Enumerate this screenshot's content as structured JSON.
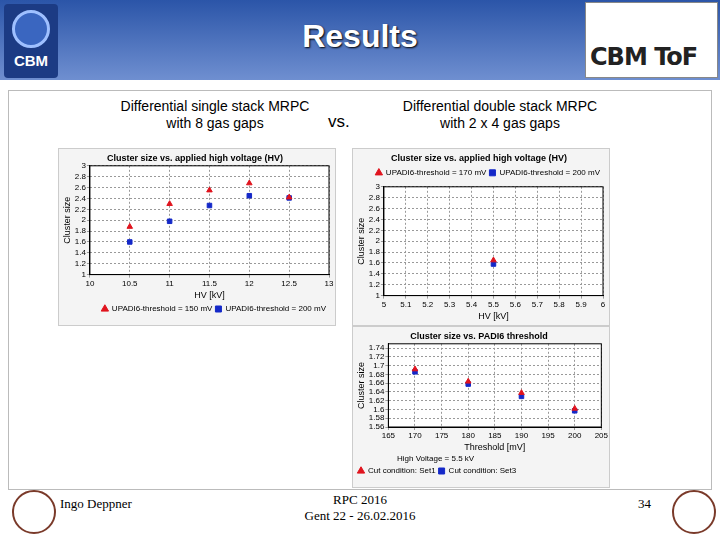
{
  "slide": {
    "title": "Results",
    "logo_left": "CBM",
    "logo_right": "CBM ToF",
    "left_heading": [
      "Differential single stack MRPC",
      "with 8 gas gaps"
    ],
    "vs": "vs.",
    "right_heading": [
      "Differential double stack MRPC",
      "with 2 x 4 gas gaps"
    ],
    "author": "Ingo Deppner",
    "conference": [
      "RPC 2016",
      "Gent 22 - 26.02.2016"
    ],
    "page": "34"
  },
  "chart_data": [
    {
      "type": "scatter",
      "title": "Cluster size vs. applied high voltage (HV)",
      "x_label": "HV [kV]",
      "y_label": "Cluster size",
      "x": [
        10.5,
        11,
        11.5,
        12,
        12.5
      ],
      "series": [
        {
          "name": "UPADI6-threshold = 150 mV",
          "color": "#e0141e",
          "marker": "triangle",
          "values": [
            1.88,
            2.3,
            2.55,
            2.68,
            2.42
          ]
        },
        {
          "name": "UPADI6-threshold = 200 mV",
          "color": "#1428c8",
          "marker": "square",
          "values": [
            1.6,
            1.98,
            2.27,
            2.45,
            2.41
          ]
        }
      ],
      "xlim": [
        10,
        13
      ],
      "xticks": [
        10,
        10.5,
        11,
        11.5,
        12,
        12.5,
        13
      ],
      "ylim": [
        1,
        3
      ],
      "yticks": [
        1,
        1.2,
        1.4,
        1.6,
        1.8,
        2,
        2.2,
        2.4,
        2.6,
        2.8,
        3
      ],
      "grid": true,
      "legend": "bottom right"
    },
    {
      "type": "scatter",
      "title": "Cluster size vs. applied high voltage (HV)",
      "x_label": "HV [kV]",
      "y_label": "Cluster size",
      "x": [
        5.5
      ],
      "series": [
        {
          "name": "UPADI6-threshold = 170 mV",
          "color": "#e0141e",
          "marker": "triangle",
          "values": [
            1.65
          ]
        },
        {
          "name": "UPADI6-threshold = 200 mV",
          "color": "#1428c8",
          "marker": "square",
          "values": [
            1.58
          ]
        }
      ],
      "xlim": [
        5,
        6
      ],
      "xticks": [
        5,
        5.1,
        5.2,
        5.3,
        5.4,
        5.5,
        5.6,
        5.7,
        5.8,
        5.9,
        6
      ],
      "ylim": [
        1,
        3
      ],
      "yticks": [
        1,
        1.2,
        1.4,
        1.6,
        1.8,
        2,
        2.2,
        2.4,
        2.6,
        2.8,
        3
      ],
      "grid": true,
      "legend": "top right"
    },
    {
      "type": "scatter",
      "title": "Cluster size vs. PADI6 threshold",
      "x_label": "Threshold [mV]",
      "y_label": "Cluster size",
      "annotation": "High Voltage = 5.5 kV",
      "x": [
        170,
        180,
        190,
        200
      ],
      "series": [
        {
          "name": "Cut condition: Set1",
          "color": "#e0141e",
          "marker": "triangle",
          "values": [
            1.692,
            1.664,
            1.638,
            1.602
          ]
        },
        {
          "name": "Cut condition: Set3",
          "color": "#1428c8",
          "marker": "square",
          "values": [
            1.686,
            1.658,
            1.63,
            1.597
          ]
        }
      ],
      "xlim": [
        165,
        205
      ],
      "xticks": [
        165,
        170,
        175,
        180,
        185,
        190,
        195,
        200,
        205
      ],
      "ylim": [
        1.56,
        1.75
      ],
      "yticks": [
        1.56,
        1.58,
        1.6,
        1.62,
        1.64,
        1.66,
        1.68,
        1.7,
        1.72,
        1.74
      ],
      "grid": true,
      "legend": "bottom left"
    }
  ]
}
